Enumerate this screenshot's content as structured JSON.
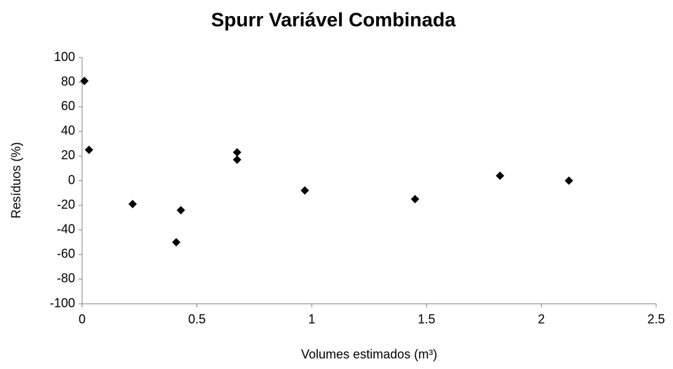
{
  "chart_data": {
    "type": "scatter",
    "title": "Spurr Variável Combinada",
    "xlabel": "Volumes estimados  (m³)",
    "ylabel": "Resíduos (%)",
    "series": [
      {
        "name": "Resíduos",
        "color": "#000000",
        "x": [
          0.01,
          0.03,
          0.22,
          0.41,
          0.43,
          0.675,
          0.675,
          0.97,
          1.45,
          1.82,
          2.12
        ],
        "values": [
          81,
          25,
          -19,
          -50,
          -24,
          23,
          17,
          -8,
          -15,
          4,
          0
        ]
      }
    ],
    "xlim": [
      0,
      2.5
    ],
    "xticks": [
      0,
      0.5,
      1,
      1.5,
      2,
      2.5
    ],
    "ylim": [
      -100,
      100
    ],
    "yticks": [
      -100,
      -80,
      -60,
      -40,
      -20,
      0,
      20,
      40,
      60,
      80,
      100
    ],
    "grid": false,
    "legend": false
  }
}
